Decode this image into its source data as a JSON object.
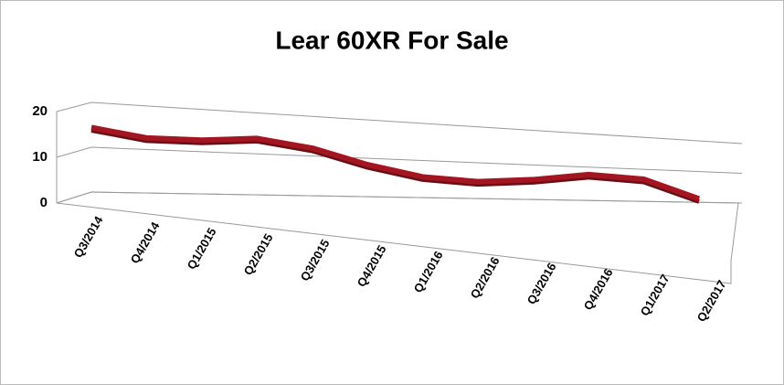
{
  "chart_data": {
    "type": "line",
    "title": "Lear 60XR For Sale",
    "categories": [
      "Q3/2014",
      "Q4/2014",
      "Q1/2015",
      "Q2/2015",
      "Q3/2015",
      "Q4/2015",
      "Q1/2016",
      "Q2/2016",
      "Q3/2016",
      "Q4/2016",
      "Q1/2017",
      "Q2/2017"
    ],
    "values": [
      17,
      15,
      15,
      16,
      14,
      10,
      7,
      6,
      7,
      9,
      8,
      2
    ],
    "color": "#a31621",
    "ylim": [
      0,
      20
    ],
    "yticks": [
      0,
      10,
      20
    ],
    "grid": true
  }
}
